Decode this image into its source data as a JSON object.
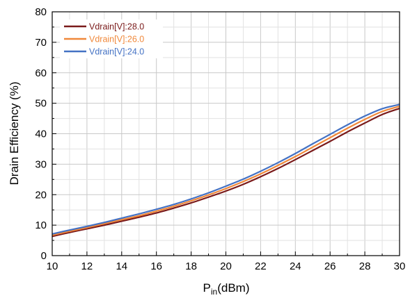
{
  "chart_data": {
    "type": "line",
    "xlabel_main": "P",
    "xlabel_sub": "in",
    "xlabel_unit": "(dBm)",
    "ylabel": "Drain Efficiency (%)",
    "xlim": [
      10,
      30
    ],
    "ylim": [
      0,
      80
    ],
    "xticks": [
      10,
      12,
      14,
      16,
      18,
      20,
      22,
      24,
      26,
      28,
      30
    ],
    "yticks": [
      0,
      10,
      20,
      30,
      40,
      50,
      60,
      70,
      80
    ],
    "grid": true,
    "legend_position": "top-left",
    "x": [
      10,
      11,
      12,
      13,
      14,
      15,
      16,
      17,
      18,
      19,
      20,
      21,
      22,
      23,
      24,
      25,
      26,
      27,
      28,
      29,
      30
    ],
    "series": [
      {
        "name": "Vdrain[V]:28.0",
        "color": "#7a1a1a",
        "values": [
          6.3,
          7.6,
          8.8,
          10.0,
          11.3,
          12.6,
          14.0,
          15.6,
          17.3,
          19.2,
          21.2,
          23.4,
          25.9,
          28.6,
          31.5,
          34.5,
          37.5,
          40.6,
          43.5,
          46.3,
          48.3
        ]
      },
      {
        "name": "Vdrain[V]:26.0",
        "color": "#f0883a",
        "values": [
          6.7,
          8.0,
          9.2,
          10.5,
          11.8,
          13.1,
          14.6,
          16.2,
          18.0,
          19.9,
          22.0,
          24.3,
          26.8,
          29.6,
          32.5,
          35.6,
          38.7,
          41.8,
          44.7,
          47.3,
          49.0
        ]
      },
      {
        "name": "Vdrain[V]:24.0",
        "color": "#4472c4",
        "values": [
          7.1,
          8.4,
          9.6,
          10.9,
          12.3,
          13.7,
          15.2,
          16.8,
          18.6,
          20.6,
          22.8,
          25.1,
          27.7,
          30.5,
          33.5,
          36.7,
          39.8,
          42.9,
          45.8,
          48.2,
          49.6
        ]
      }
    ]
  }
}
